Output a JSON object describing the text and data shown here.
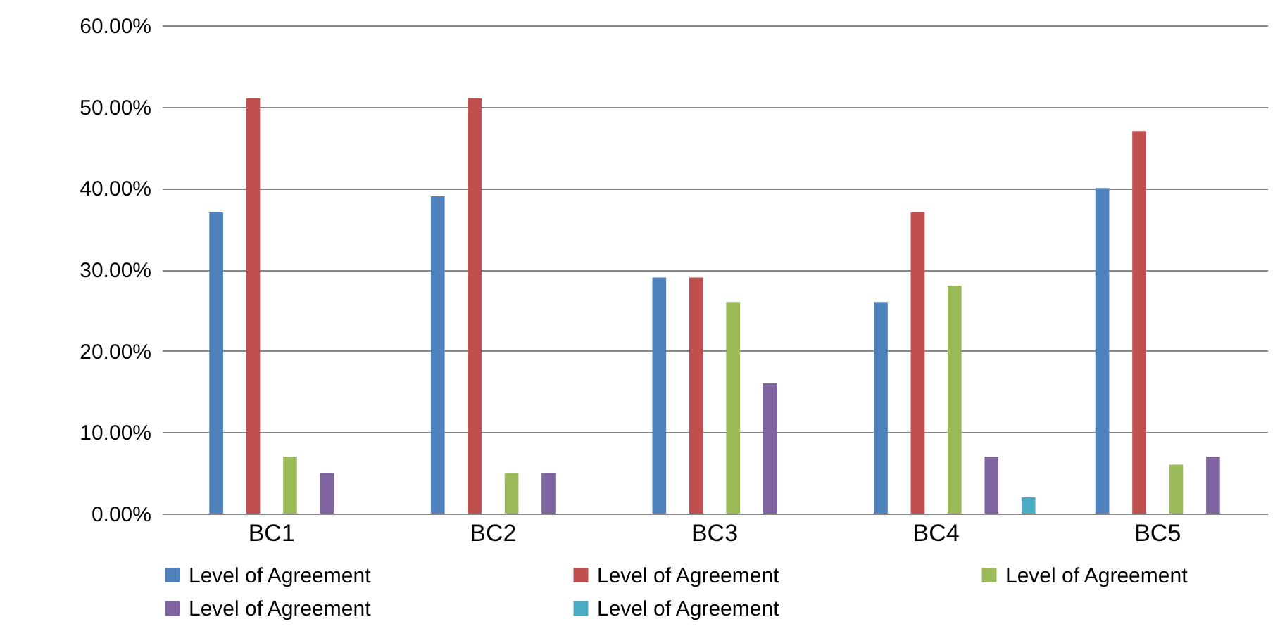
{
  "chart_data": {
    "type": "bar",
    "categories": [
      "BC1",
      "BC2",
      "BC3",
      "BC4",
      "BC5"
    ],
    "series": [
      {
        "name": "Level of Agreement",
        "color": "#4f81bd",
        "values": [
          37,
          39,
          29,
          26,
          40
        ]
      },
      {
        "name": "Level of Agreement",
        "color": "#c0504d",
        "values": [
          51,
          51,
          29,
          37,
          47
        ]
      },
      {
        "name": "Level of Agreement",
        "color": "#9bbb59",
        "values": [
          7,
          5,
          26,
          28,
          6
        ]
      },
      {
        "name": "Level of Agreement",
        "color": "#8064a2",
        "values": [
          5,
          5,
          16,
          7,
          7
        ]
      },
      {
        "name": "Level of Agreement",
        "color": "#4bacc6",
        "values": [
          null,
          null,
          null,
          2,
          null
        ]
      }
    ],
    "ylim": [
      0,
      60
    ],
    "yticks": [
      {
        "value": 0,
        "label": "0.00%"
      },
      {
        "value": 10,
        "label": "10.00%"
      },
      {
        "value": 20,
        "label": "20.00%"
      },
      {
        "value": 30,
        "label": "30.00%"
      },
      {
        "value": 40,
        "label": "40.00%"
      },
      {
        "value": 50,
        "label": "50.00%"
      },
      {
        "value": 60,
        "label": "60.00%"
      }
    ],
    "grid": "y",
    "legend": "bottom"
  }
}
